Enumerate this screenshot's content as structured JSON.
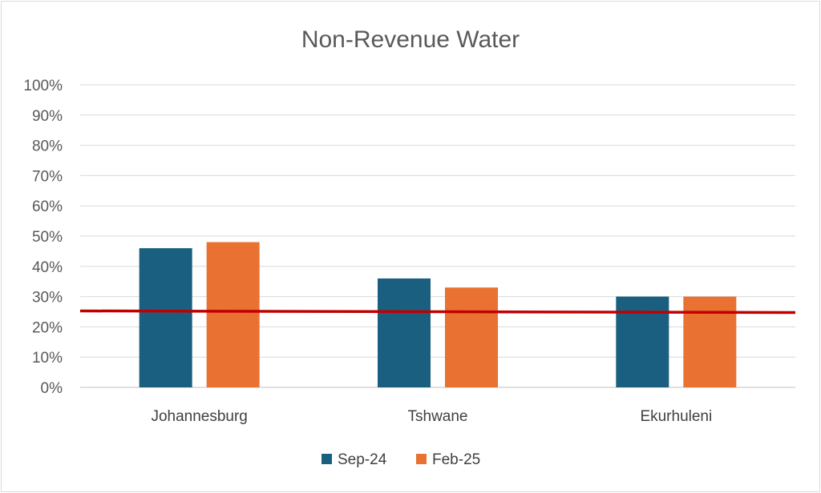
{
  "chart_data": {
    "type": "bar",
    "title": "Non-Revenue Water",
    "categories": [
      "Johannesburg",
      "Tshwane",
      "Ekurhuleni"
    ],
    "series": [
      {
        "name": "Sep-24",
        "values": [
          46,
          36,
          30
        ],
        "color": "#1a5f80"
      },
      {
        "name": "Feb-25",
        "values": [
          48,
          33,
          30
        ],
        "color": "#e97132"
      }
    ],
    "ylim": [
      0,
      100
    ],
    "ytick_step": 10,
    "y_tick_labels": [
      "0%",
      "10%",
      "20%",
      "30%",
      "40%",
      "50%",
      "60%",
      "70%",
      "80%",
      "90%",
      "100%"
    ],
    "reference_line": {
      "value": 25,
      "color": "#c00000"
    },
    "grid": true,
    "legend_position": "bottom"
  }
}
